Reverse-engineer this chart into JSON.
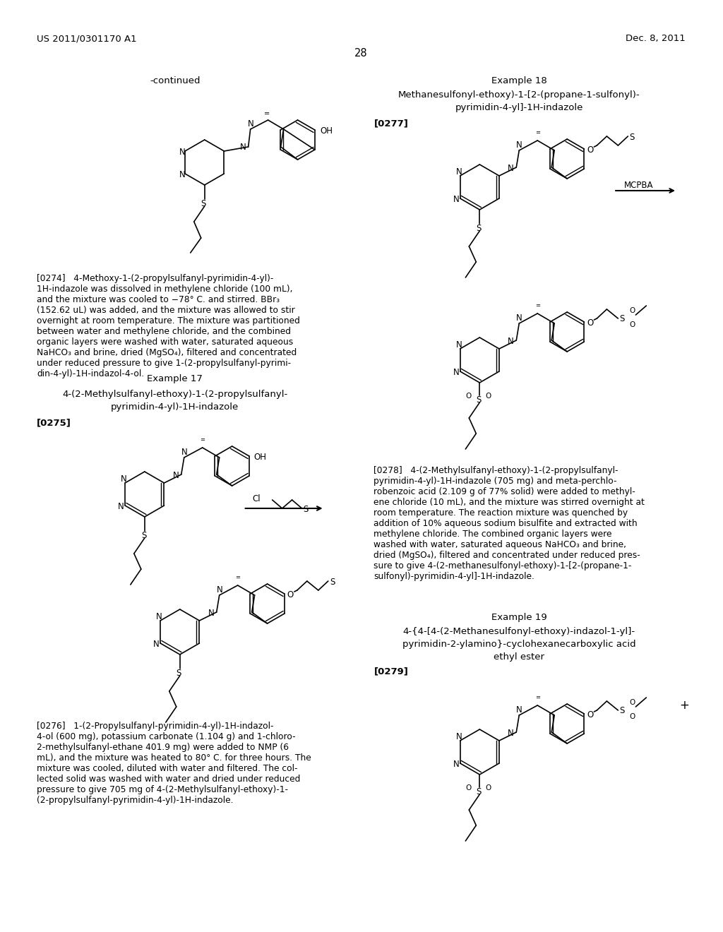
{
  "background_color": "#ffffff",
  "header_left": "US 2011/0301170 A1",
  "header_right": "Dec. 8, 2011",
  "page_number": "28",
  "continued_label": "-continued",
  "example17_title": "Example 17",
  "example17_subtitle1": "4-(2-Methylsulfanyl-ethoxy)-1-(2-propylsulfanyl-",
  "example17_subtitle2": "pyrimidin-4-yl)-1H-indazole",
  "example17_ref": "[0275]",
  "example18_title": "Example 18",
  "example18_subtitle": "Methanesulfonyl-ethoxy)-1-[2-(propane-1-sulfonyl)-\npyrimidin-4-yl]-1H-indazole",
  "example18_ref": "[0277]",
  "mcpba_label": "MCPBA",
  "cl_reagent": "Cl",
  "s_reagent": "S",
  "para274_ref": "[0274]",
  "para274_text": "4-Methoxy-1-(2-propylsulfanyl-pyrimidin-4-yl)-\n1H-indazole was dissolved in methylene chloride (100 mL),\nand the mixture was cooled to −78° C. and stirred. BBr₃\n(152.62 uL) was added, and the mixture was allowed to stir\novernight at room temperature. The mixture was partitioned\nbetween water and methylene chloride, and the combined\norganic layers were washed with water, saturated aqueous\nNaHCO₃ and brine, dried (MgSO₄), filtered and concentrated\nunder reduced pressure to give 1-(2-propylsulfanyl-pyrimi-\ndin-4-yl)-1H-indazol-4-ol.",
  "para275_ref": "[0275]",
  "para276_ref": "[0276]",
  "para276_text": "1-(2-Propylsulfanyl-pyrimidin-4-yl)-1H-indazol-\n4-ol (600 mg), potassium carbonate (1.104 g) and 1-chloro-\n2-methylsulfanyl-ethane 401.9 mg) were added to NMP (6\nmL), and the mixture was heated to 80° C. for three hours. The\nmixture was cooled, diluted with water and filtered. The col-\nlected solid was washed with water and dried under reduced\npressure to give 705 mg of 4-(2-Methylsulfanyl-ethoxy)-1-\n(2-propylsulfanyl-pyrimidin-4-yl)-1H-indazole.",
  "para277_ref": "[0277]",
  "para278_ref": "[0278]",
  "para278_text": "4-(2-Methylsulfanyl-ethoxy)-1-(2-propylsulfanyl-\npyrimidin-4-yl)-1H-indazole (705 mg) and meta-perchlo-\nrobenzoic acid (2.109 g of 77% solid) were added to methyl-\nene chloride (10 mL), and the mixture was stirred overnight at\nroom temperature. The reaction mixture was quenched by\naddition of 10% aqueous sodium bisulfite and extracted with\nmethylene chloride. The combined organic layers were\nwashed with water, saturated aqueous NaHCO₃ and brine,\ndried (MgSO₄), filtered and concentrated under reduced pres-\nsure to give 4-(2-methanesulfonyl-ethoxy)-1-[2-(propane-1-\nsulfonyl)-pyrimidin-4-yl]-1H-indazole.",
  "example19_title": "Example 19",
  "example19_subtitle1": "4-{4-[4-(2-Methanesulfonyl-ethoxy)-indazol-1-yl]-",
  "example19_subtitle2": "pyrimidin-2-ylamino}-cyclohexanecarboxylic acid",
  "example19_subtitle3": "ethyl ester",
  "para279_ref": "[0279]"
}
